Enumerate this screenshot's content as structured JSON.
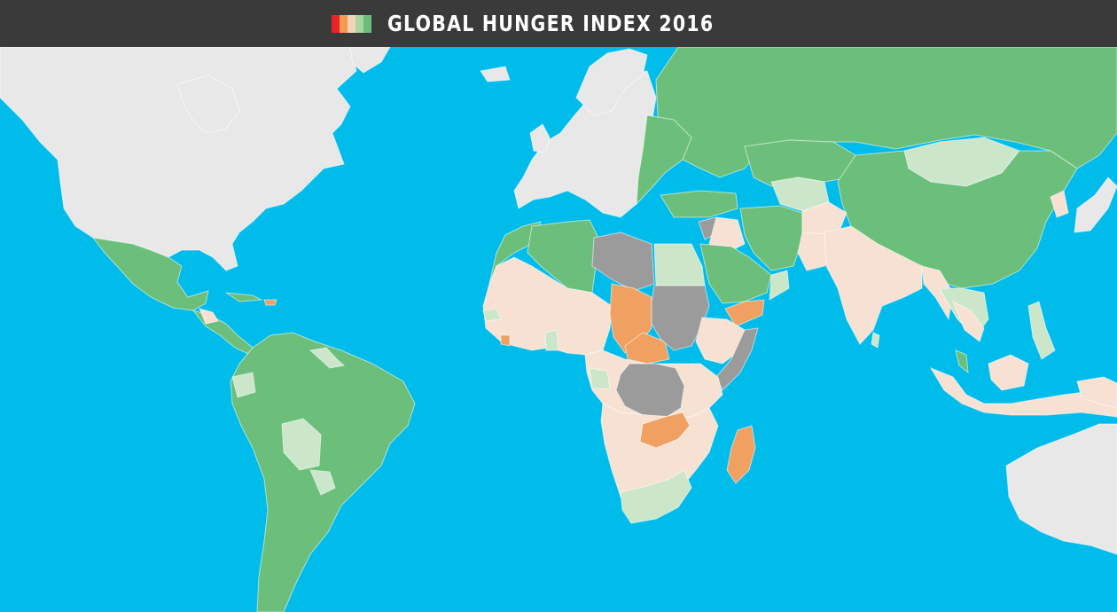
{
  "header": {
    "title": "GLOBAL HUNGER INDEX 2016"
  },
  "legend_colors": [
    "#E8242A",
    "#F39C51",
    "#F6D3B8",
    "#A8D5A0",
    "#6CBF7B"
  ],
  "colors": {
    "ocean": "#00BCEB",
    "header_bg": "#3A3A3A",
    "alarming": "#F0A060",
    "serious": "#F7E1D2",
    "moderate": "#CCE6CA",
    "low": "#6CBF7B",
    "insufficient_data": "#9B9B9B",
    "not_included": "#E8E8E8"
  }
}
